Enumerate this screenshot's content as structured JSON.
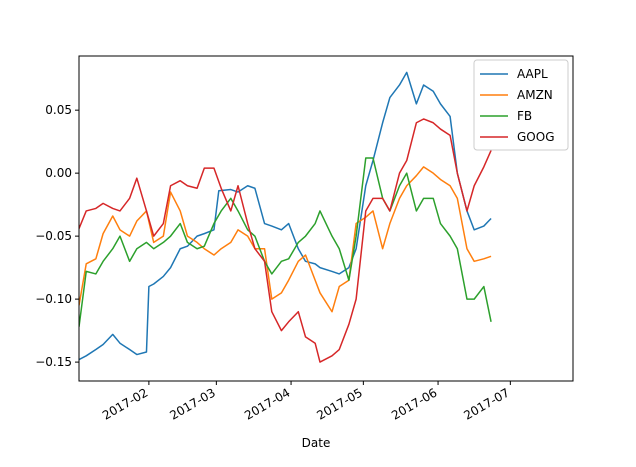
{
  "chart_data": {
    "type": "line",
    "title": "",
    "xlabel": "Date",
    "ylabel": "",
    "xlim": [
      "2017-01-03",
      "2017-07-27"
    ],
    "ylim": [
      -0.165,
      0.093
    ],
    "grid": false,
    "legend": {
      "position": "top-right"
    },
    "x_ticks": [
      "2017-02",
      "2017-03",
      "2017-04",
      "2017-05",
      "2017-06",
      "2017-07"
    ],
    "y_ticks": [
      "0.05",
      "0.00",
      "−0.05",
      "−0.10",
      "−0.15"
    ],
    "series": [
      {
        "name": "AAPL",
        "color": "#1f77b4",
        "points": [
          [
            "2017-01-03",
            -0.148
          ],
          [
            "2017-01-06",
            -0.145
          ],
          [
            "2017-01-10",
            -0.14
          ],
          [
            "2017-01-13",
            -0.136
          ],
          [
            "2017-01-17",
            -0.128
          ],
          [
            "2017-01-20",
            -0.135
          ],
          [
            "2017-01-24",
            -0.14
          ],
          [
            "2017-01-27",
            -0.144
          ],
          [
            "2017-01-31",
            -0.142
          ],
          [
            "2017-02-01",
            -0.09
          ],
          [
            "2017-02-03",
            -0.088
          ],
          [
            "2017-02-07",
            -0.082
          ],
          [
            "2017-02-10",
            -0.075
          ],
          [
            "2017-02-14",
            -0.06
          ],
          [
            "2017-02-17",
            -0.058
          ],
          [
            "2017-02-21",
            -0.05
          ],
          [
            "2017-02-24",
            -0.048
          ],
          [
            "2017-02-28",
            -0.045
          ],
          [
            "2017-03-02",
            -0.014
          ],
          [
            "2017-03-07",
            -0.013
          ],
          [
            "2017-03-10",
            -0.015
          ],
          [
            "2017-03-14",
            -0.01
          ],
          [
            "2017-03-17",
            -0.012
          ],
          [
            "2017-03-21",
            -0.04
          ],
          [
            "2017-03-24",
            -0.042
          ],
          [
            "2017-03-28",
            -0.045
          ],
          [
            "2017-03-31",
            -0.04
          ],
          [
            "2017-04-04",
            -0.06
          ],
          [
            "2017-04-07",
            -0.07
          ],
          [
            "2017-04-11",
            -0.072
          ],
          [
            "2017-04-13",
            -0.075
          ],
          [
            "2017-04-18",
            -0.078
          ],
          [
            "2017-04-21",
            -0.08
          ],
          [
            "2017-04-25",
            -0.075
          ],
          [
            "2017-04-28",
            -0.06
          ],
          [
            "2017-05-02",
            -0.01
          ],
          [
            "2017-05-05",
            0.01
          ],
          [
            "2017-05-09",
            0.04
          ],
          [
            "2017-05-12",
            0.06
          ],
          [
            "2017-05-16",
            0.07
          ],
          [
            "2017-05-19",
            0.08
          ],
          [
            "2017-05-23",
            0.055
          ],
          [
            "2017-05-26",
            0.07
          ],
          [
            "2017-05-30",
            0.065
          ],
          [
            "2017-06-02",
            0.055
          ],
          [
            "2017-06-06",
            0.045
          ],
          [
            "2017-06-09",
            0.0
          ],
          [
            "2017-06-13",
            -0.03
          ],
          [
            "2017-06-16",
            -0.045
          ],
          [
            "2017-06-20",
            -0.042
          ],
          [
            "2017-06-22",
            -0.038
          ],
          [
            "2017-06-23",
            -0.036
          ]
        ]
      },
      {
        "name": "AMZN",
        "color": "#ff7f0e",
        "points": [
          [
            "2017-01-03",
            -0.105
          ],
          [
            "2017-01-06",
            -0.072
          ],
          [
            "2017-01-10",
            -0.068
          ],
          [
            "2017-01-13",
            -0.048
          ],
          [
            "2017-01-17",
            -0.034
          ],
          [
            "2017-01-20",
            -0.045
          ],
          [
            "2017-01-24",
            -0.05
          ],
          [
            "2017-01-27",
            -0.038
          ],
          [
            "2017-01-31",
            -0.03
          ],
          [
            "2017-02-03",
            -0.055
          ],
          [
            "2017-02-07",
            -0.05
          ],
          [
            "2017-02-10",
            -0.015
          ],
          [
            "2017-02-14",
            -0.03
          ],
          [
            "2017-02-17",
            -0.05
          ],
          [
            "2017-02-21",
            -0.055
          ],
          [
            "2017-02-24",
            -0.06
          ],
          [
            "2017-02-28",
            -0.065
          ],
          [
            "2017-03-03",
            -0.06
          ],
          [
            "2017-03-07",
            -0.055
          ],
          [
            "2017-03-10",
            -0.045
          ],
          [
            "2017-03-14",
            -0.05
          ],
          [
            "2017-03-17",
            -0.06
          ],
          [
            "2017-03-21",
            -0.06
          ],
          [
            "2017-03-24",
            -0.1
          ],
          [
            "2017-03-28",
            -0.095
          ],
          [
            "2017-03-31",
            -0.085
          ],
          [
            "2017-04-04",
            -0.07
          ],
          [
            "2017-04-07",
            -0.065
          ],
          [
            "2017-04-11",
            -0.085
          ],
          [
            "2017-04-13",
            -0.095
          ],
          [
            "2017-04-18",
            -0.11
          ],
          [
            "2017-04-21",
            -0.09
          ],
          [
            "2017-04-25",
            -0.085
          ],
          [
            "2017-04-28",
            -0.04
          ],
          [
            "2017-05-02",
            -0.035
          ],
          [
            "2017-05-05",
            -0.03
          ],
          [
            "2017-05-09",
            -0.06
          ],
          [
            "2017-05-12",
            -0.04
          ],
          [
            "2017-05-16",
            -0.02
          ],
          [
            "2017-05-19",
            -0.01
          ],
          [
            "2017-05-23",
            -0.002
          ],
          [
            "2017-05-26",
            0.005
          ],
          [
            "2017-05-30",
            0.0
          ],
          [
            "2017-06-02",
            -0.005
          ],
          [
            "2017-06-06",
            -0.01
          ],
          [
            "2017-06-09",
            -0.02
          ],
          [
            "2017-06-13",
            -0.06
          ],
          [
            "2017-06-16",
            -0.07
          ],
          [
            "2017-06-20",
            -0.068
          ],
          [
            "2017-06-23",
            -0.066
          ]
        ]
      },
      {
        "name": "FB",
        "color": "#2ca02c",
        "points": [
          [
            "2017-01-03",
            -0.122
          ],
          [
            "2017-01-06",
            -0.078
          ],
          [
            "2017-01-10",
            -0.08
          ],
          [
            "2017-01-13",
            -0.07
          ],
          [
            "2017-01-17",
            -0.06
          ],
          [
            "2017-01-20",
            -0.05
          ],
          [
            "2017-01-24",
            -0.07
          ],
          [
            "2017-01-27",
            -0.06
          ],
          [
            "2017-01-31",
            -0.055
          ],
          [
            "2017-02-03",
            -0.06
          ],
          [
            "2017-02-07",
            -0.055
          ],
          [
            "2017-02-10",
            -0.05
          ],
          [
            "2017-02-14",
            -0.04
          ],
          [
            "2017-02-17",
            -0.055
          ],
          [
            "2017-02-21",
            -0.06
          ],
          [
            "2017-02-24",
            -0.058
          ],
          [
            "2017-02-28",
            -0.04
          ],
          [
            "2017-03-03",
            -0.03
          ],
          [
            "2017-03-07",
            -0.02
          ],
          [
            "2017-03-10",
            -0.03
          ],
          [
            "2017-03-14",
            -0.045
          ],
          [
            "2017-03-17",
            -0.05
          ],
          [
            "2017-03-21",
            -0.07
          ],
          [
            "2017-03-24",
            -0.08
          ],
          [
            "2017-03-28",
            -0.07
          ],
          [
            "2017-03-31",
            -0.068
          ],
          [
            "2017-04-04",
            -0.055
          ],
          [
            "2017-04-07",
            -0.05
          ],
          [
            "2017-04-11",
            -0.04
          ],
          [
            "2017-04-13",
            -0.03
          ],
          [
            "2017-04-18",
            -0.05
          ],
          [
            "2017-04-21",
            -0.06
          ],
          [
            "2017-04-25",
            -0.085
          ],
          [
            "2017-04-28",
            -0.05
          ],
          [
            "2017-05-02",
            0.012
          ],
          [
            "2017-05-05",
            0.012
          ],
          [
            "2017-05-09",
            -0.02
          ],
          [
            "2017-05-12",
            -0.03
          ],
          [
            "2017-05-16",
            -0.01
          ],
          [
            "2017-05-19",
            0.0
          ],
          [
            "2017-05-23",
            -0.03
          ],
          [
            "2017-05-26",
            -0.02
          ],
          [
            "2017-05-30",
            -0.02
          ],
          [
            "2017-06-02",
            -0.04
          ],
          [
            "2017-06-06",
            -0.05
          ],
          [
            "2017-06-09",
            -0.06
          ],
          [
            "2017-06-13",
            -0.1
          ],
          [
            "2017-06-16",
            -0.1
          ],
          [
            "2017-06-20",
            -0.09
          ],
          [
            "2017-06-23",
            -0.118
          ]
        ]
      },
      {
        "name": "GOOG",
        "color": "#d62728",
        "points": [
          [
            "2017-01-03",
            -0.044
          ],
          [
            "2017-01-06",
            -0.03
          ],
          [
            "2017-01-10",
            -0.028
          ],
          [
            "2017-01-13",
            -0.024
          ],
          [
            "2017-01-17",
            -0.028
          ],
          [
            "2017-01-20",
            -0.03
          ],
          [
            "2017-01-24",
            -0.02
          ],
          [
            "2017-01-27",
            -0.004
          ],
          [
            "2017-01-31",
            -0.03
          ],
          [
            "2017-02-03",
            -0.05
          ],
          [
            "2017-02-07",
            -0.04
          ],
          [
            "2017-02-10",
            -0.01
          ],
          [
            "2017-02-14",
            -0.006
          ],
          [
            "2017-02-17",
            -0.01
          ],
          [
            "2017-02-21",
            -0.012
          ],
          [
            "2017-02-24",
            0.004
          ],
          [
            "2017-02-28",
            0.004
          ],
          [
            "2017-03-03",
            -0.012
          ],
          [
            "2017-03-07",
            -0.03
          ],
          [
            "2017-03-10",
            -0.01
          ],
          [
            "2017-03-14",
            -0.04
          ],
          [
            "2017-03-17",
            -0.06
          ],
          [
            "2017-03-21",
            -0.07
          ],
          [
            "2017-03-24",
            -0.11
          ],
          [
            "2017-03-28",
            -0.125
          ],
          [
            "2017-03-31",
            -0.118
          ],
          [
            "2017-04-04",
            -0.11
          ],
          [
            "2017-04-07",
            -0.13
          ],
          [
            "2017-04-11",
            -0.135
          ],
          [
            "2017-04-13",
            -0.15
          ],
          [
            "2017-04-18",
            -0.145
          ],
          [
            "2017-04-21",
            -0.14
          ],
          [
            "2017-04-25",
            -0.12
          ],
          [
            "2017-04-28",
            -0.1
          ],
          [
            "2017-05-02",
            -0.03
          ],
          [
            "2017-05-05",
            -0.02
          ],
          [
            "2017-05-09",
            -0.02
          ],
          [
            "2017-05-12",
            -0.03
          ],
          [
            "2017-05-16",
            0.0
          ],
          [
            "2017-05-19",
            0.01
          ],
          [
            "2017-05-23",
            0.04
          ],
          [
            "2017-05-26",
            0.043
          ],
          [
            "2017-05-30",
            0.04
          ],
          [
            "2017-06-02",
            0.035
          ],
          [
            "2017-06-06",
            0.03
          ],
          [
            "2017-06-09",
            0.0
          ],
          [
            "2017-06-13",
            -0.03
          ],
          [
            "2017-06-16",
            -0.01
          ],
          [
            "2017-06-20",
            0.005
          ],
          [
            "2017-06-23",
            0.018
          ]
        ]
      }
    ]
  }
}
